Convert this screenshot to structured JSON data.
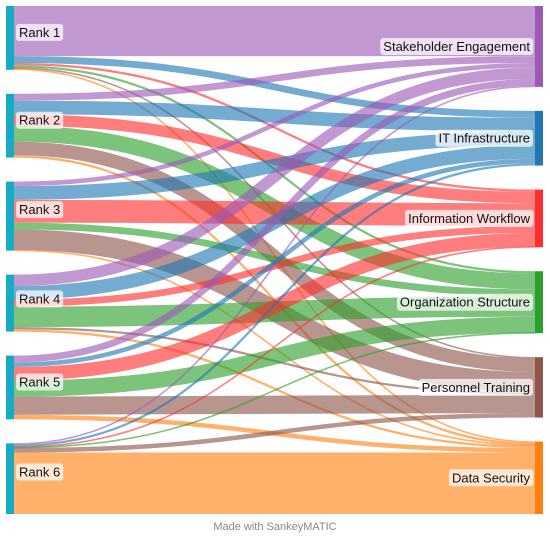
{
  "diagram": {
    "type": "sankey",
    "left_nodes": [
      "Rank 1",
      "Rank 2",
      "Rank 3",
      "Rank 4",
      "Rank 5",
      "Rank 6"
    ],
    "right_nodes": [
      {
        "label": "Stakeholder Engagement",
        "color": "#9b59b6"
      },
      {
        "label": "IT Infrastructure",
        "color": "#1f77b4"
      },
      {
        "label": "Information Workflow",
        "color": "#ff2d2d"
      },
      {
        "label": "Organization Structure",
        "color": "#2ca02c"
      },
      {
        "label": "Personnel Training",
        "color": "#8c564b"
      },
      {
        "label": "Data Security",
        "color": "#ff7f0e"
      }
    ],
    "left_node_color": "#16aac3",
    "flows": [
      [
        22,
        3,
        1,
        1,
        0.5,
        0.5
      ],
      [
        3,
        6,
        5,
        7,
        6,
        1
      ],
      [
        2,
        6,
        10,
        3,
        9,
        0.3
      ],
      [
        5,
        6,
        3,
        9,
        1,
        1
      ],
      [
        3,
        2,
        6,
        7,
        8,
        2
      ],
      [
        0.5,
        1,
        0.3,
        0.2,
        2,
        27
      ]
    ]
  },
  "footer": "Made with SankeyMATIC"
}
